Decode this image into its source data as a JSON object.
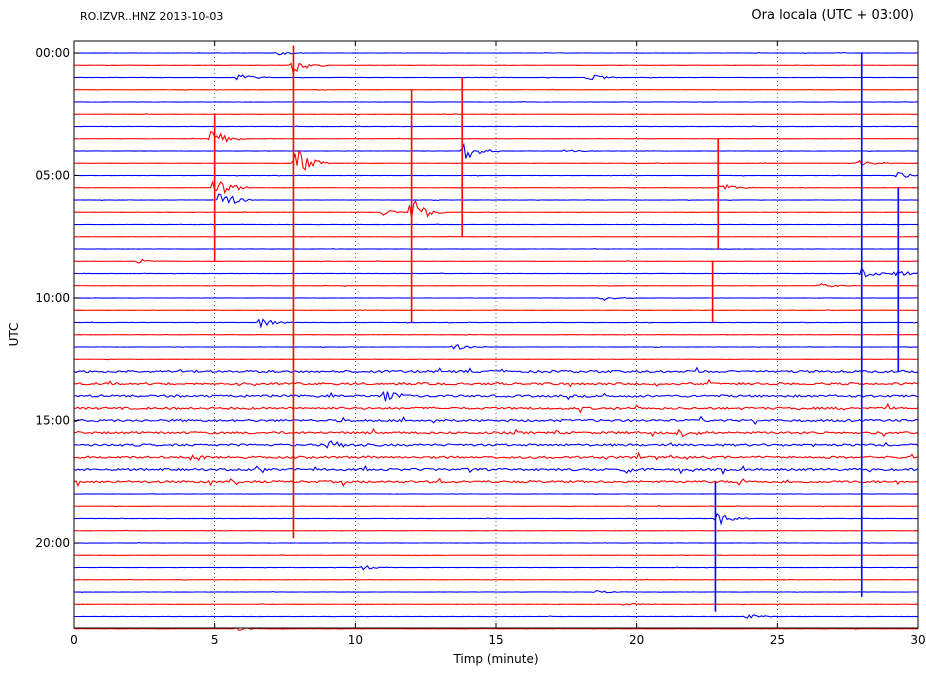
{
  "header": {
    "station": "RO.IZVR..HNZ 2013-10-03",
    "local_time": "Ora locala (UTC + 03:00)"
  },
  "chart_data": {
    "type": "line",
    "title": "",
    "xlabel": "Timp (minute)",
    "ylabel": "UTC",
    "xlim": [
      0,
      30
    ],
    "x_ticks": [
      0,
      5,
      10,
      15,
      20,
      25,
      30
    ],
    "x_tick_labels": [
      "0",
      "5",
      "10",
      "15",
      "20",
      "25",
      "30"
    ],
    "y_tick_labels": [
      "00:00",
      "05:00",
      "10:00",
      "15:00",
      "20:00"
    ],
    "y_tick_hours": [
      0,
      5,
      10,
      15,
      20
    ],
    "row_interval_minutes": 30,
    "row_count": 48,
    "grid": "vertical dotted at x ticks",
    "colors": [
      "#0000ff",
      "#ff0000"
    ],
    "events": [
      {
        "hour": 0.0,
        "minute": 7.2,
        "amplitude": 0.5
      },
      {
        "hour": 0.5,
        "minute": 7.8,
        "amplitude": 2.0
      },
      {
        "hour": 1.0,
        "minute": 5.8,
        "amplitude": 1.0
      },
      {
        "hour": 1.0,
        "minute": 18.3,
        "amplitude": 0.8
      },
      {
        "hour": 3.5,
        "minute": 4.9,
        "amplitude": 2.0
      },
      {
        "hour": 4.0,
        "minute": 13.9,
        "amplitude": 2.0
      },
      {
        "hour": 4.0,
        "minute": 17.5,
        "amplitude": 0.4
      },
      {
        "hour": 4.5,
        "minute": 7.9,
        "amplitude": 3.0
      },
      {
        "hour": 4.5,
        "minute": 27.9,
        "amplitude": 0.6
      },
      {
        "hour": 5.0,
        "minute": 29.3,
        "amplitude": 0.7
      },
      {
        "hour": 5.5,
        "minute": 5.0,
        "amplitude": 2.5
      },
      {
        "hour": 5.5,
        "minute": 23.0,
        "amplitude": 1.0
      },
      {
        "hour": 6.0,
        "minute": 5.2,
        "amplitude": 2.0
      },
      {
        "hour": 6.5,
        "minute": 12.0,
        "amplitude": 3.0
      },
      {
        "hour": 6.5,
        "minute": 11.0,
        "amplitude": 0.6
      },
      {
        "hour": 8.5,
        "minute": 2.2,
        "amplitude": 0.6
      },
      {
        "hour": 9.0,
        "minute": 28.0,
        "amplitude": 1.2
      },
      {
        "hour": 9.0,
        "minute": 29.2,
        "amplitude": 0.9
      },
      {
        "hour": 9.5,
        "minute": 26.5,
        "amplitude": 0.6
      },
      {
        "hour": 10.0,
        "minute": 18.8,
        "amplitude": 0.6
      },
      {
        "hour": 11.0,
        "minute": 6.6,
        "amplitude": 1.0
      },
      {
        "hour": 12.0,
        "minute": 13.5,
        "amplitude": 0.7
      },
      {
        "hour": 14.0,
        "minute": 11.0,
        "amplitude": 1.2
      },
      {
        "hour": 15.5,
        "minute": 21.5,
        "amplitude": 0.9
      },
      {
        "hour": 16.0,
        "minute": 9.0,
        "amplitude": 1.0
      },
      {
        "hour": 16.5,
        "minute": 4.2,
        "amplitude": 1.0
      },
      {
        "hour": 17.0,
        "minute": 19.5,
        "amplitude": 0.9
      },
      {
        "hour": 19.0,
        "minute": 22.9,
        "amplitude": 1.4
      },
      {
        "hour": 21.0,
        "minute": 10.2,
        "amplitude": 0.6
      },
      {
        "hour": 22.5,
        "minute": 19.5,
        "amplitude": 0.5
      },
      {
        "hour": 22.0,
        "minute": 18.5,
        "amplitude": 0.5
      },
      {
        "hour": 23.0,
        "minute": 23.9,
        "amplitude": 0.5
      },
      {
        "hour": 23.5,
        "minute": 5.8,
        "amplitude": 0.4
      }
    ],
    "spikes": [
      {
        "minute": 7.8,
        "from_hour": -0.3,
        "to_hour": 19.8,
        "row_color_index": 1
      },
      {
        "minute": 28.0,
        "from_hour": 0.0,
        "to_hour": 22.2,
        "row_color_index": 0
      },
      {
        "minute": 29.3,
        "from_hour": 5.5,
        "to_hour": 13.0,
        "row_color_index": 0
      },
      {
        "minute": 22.8,
        "from_hour": 17.5,
        "to_hour": 22.8,
        "row_color_index": 0
      },
      {
        "minute": 5.0,
        "from_hour": 2.5,
        "to_hour": 8.5,
        "row_color_index": 1
      },
      {
        "minute": 12.0,
        "from_hour": 1.5,
        "to_hour": 11.0,
        "row_color_index": 1
      },
      {
        "minute": 13.8,
        "from_hour": 1.0,
        "to_hour": 7.5,
        "row_color_index": 1
      },
      {
        "minute": 22.9,
        "from_hour": 3.5,
        "to_hour": 8.0,
        "row_color_index": 1
      },
      {
        "minute": 22.7,
        "from_hour": 8.5,
        "to_hour": 11.0,
        "row_color_index": 1
      }
    ],
    "noisy_hours": [
      {
        "from_hour": 13.0,
        "to_hour": 17.5,
        "level": 0.6
      }
    ]
  }
}
